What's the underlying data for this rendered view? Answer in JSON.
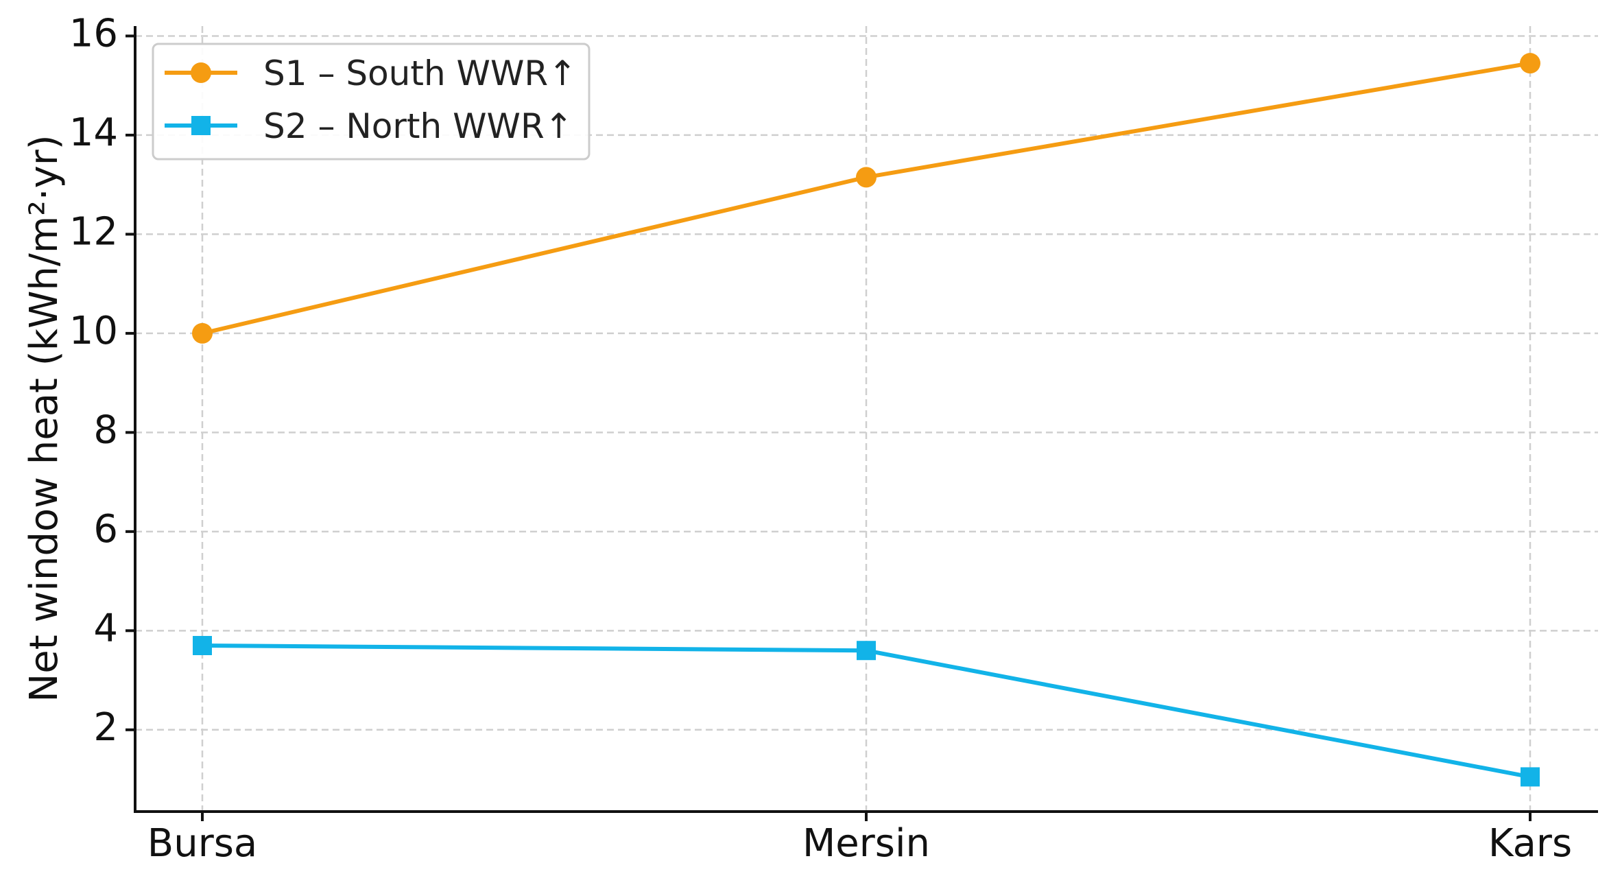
{
  "chart_data": {
    "type": "line",
    "categories": [
      "Bursa",
      "Mersin",
      "Kars"
    ],
    "series": [
      {
        "name": "S1 – South WWR↑",
        "values": [
          10.0,
          13.15,
          15.45
        ],
        "color": "#F59C12",
        "marker": "circle"
      },
      {
        "name": "S2 – North WWR↑",
        "values": [
          3.7,
          3.6,
          1.05
        ],
        "color": "#12B3E8",
        "marker": "square"
      }
    ],
    "title": "",
    "xlabel": "",
    "ylabel": "Net window heat (kWh/m²·yr)",
    "ylim": [
      0.35,
      16.2
    ],
    "yticks": [
      2,
      4,
      6,
      8,
      10,
      12,
      14,
      16
    ],
    "grid": true,
    "legend_position": "top-left"
  }
}
